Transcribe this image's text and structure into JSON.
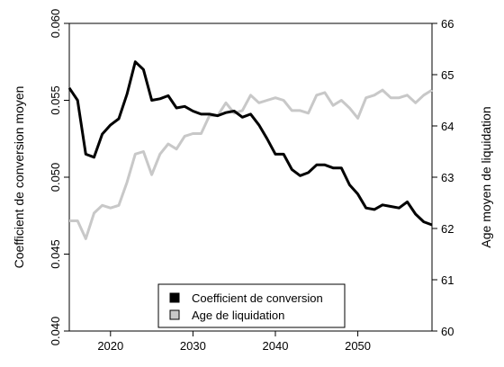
{
  "chart_data": {
    "type": "line",
    "x_ticks": [
      2020,
      2030,
      2040,
      2050
    ],
    "xlim": [
      2015,
      2059
    ],
    "y_left": {
      "label": "Coefficient de conversion moyen",
      "ticks": [
        "0.040",
        "0.045",
        "0.050",
        "0.055",
        "0.060"
      ],
      "ylim": [
        0.04,
        0.06
      ]
    },
    "y_right": {
      "label": "Age moyen de liquidation",
      "ticks": [
        "60",
        "61",
        "62",
        "63",
        "64",
        "65",
        "66"
      ],
      "ylim": [
        60,
        66
      ]
    },
    "grid": false,
    "legend_position": "bottom-center",
    "series": [
      {
        "name": "Coefficient de conversion",
        "axis": "left",
        "color": "#000000",
        "x": [
          2015,
          2016,
          2017,
          2018,
          2019,
          2020,
          2021,
          2022,
          2023,
          2024,
          2025,
          2026,
          2027,
          2028,
          2029,
          2030,
          2031,
          2032,
          2033,
          2034,
          2035,
          2036,
          2037,
          2038,
          2039,
          2040,
          2041,
          2042,
          2043,
          2044,
          2045,
          2046,
          2047,
          2048,
          2049,
          2050,
          2051,
          2052,
          2053,
          2054,
          2055,
          2056,
          2057,
          2058,
          2059
        ],
        "values": [
          0.0558,
          0.055,
          0.0515,
          0.0513,
          0.0528,
          0.0534,
          0.0538,
          0.0554,
          0.0575,
          0.057,
          0.055,
          0.0551,
          0.0553,
          0.0545,
          0.0546,
          0.0543,
          0.0541,
          0.0541,
          0.054,
          0.0542,
          0.0543,
          0.0539,
          0.0541,
          0.0534,
          0.0525,
          0.0515,
          0.0515,
          0.0505,
          0.0501,
          0.0503,
          0.0508,
          0.0508,
          0.0506,
          0.0506,
          0.0495,
          0.0489,
          0.048,
          0.0479,
          0.0482,
          0.0481,
          0.048,
          0.0484,
          0.0476,
          0.0471,
          0.0469
        ]
      },
      {
        "name": "Age de liquidation",
        "axis": "right",
        "color": "#c8c8c8",
        "x": [
          2015,
          2016,
          2017,
          2018,
          2019,
          2020,
          2021,
          2022,
          2023,
          2024,
          2025,
          2026,
          2027,
          2028,
          2029,
          2030,
          2031,
          2032,
          2033,
          2034,
          2035,
          2036,
          2037,
          2038,
          2039,
          2040,
          2041,
          2042,
          2043,
          2044,
          2045,
          2046,
          2047,
          2048,
          2049,
          2050,
          2051,
          2052,
          2053,
          2054,
          2055,
          2056,
          2057,
          2058,
          2059
        ],
        "values": [
          62.15,
          62.15,
          61.8,
          62.3,
          62.45,
          62.4,
          62.45,
          62.9,
          63.45,
          63.5,
          63.05,
          63.45,
          63.65,
          63.55,
          63.8,
          63.85,
          63.85,
          64.2,
          64.2,
          64.45,
          64.25,
          64.3,
          64.6,
          64.45,
          64.5,
          64.55,
          64.5,
          64.3,
          64.3,
          64.25,
          64.6,
          64.65,
          64.4,
          64.5,
          64.35,
          64.15,
          64.55,
          64.6,
          64.7,
          64.55,
          64.55,
          64.6,
          64.45,
          64.6,
          64.7
        ]
      }
    ]
  }
}
